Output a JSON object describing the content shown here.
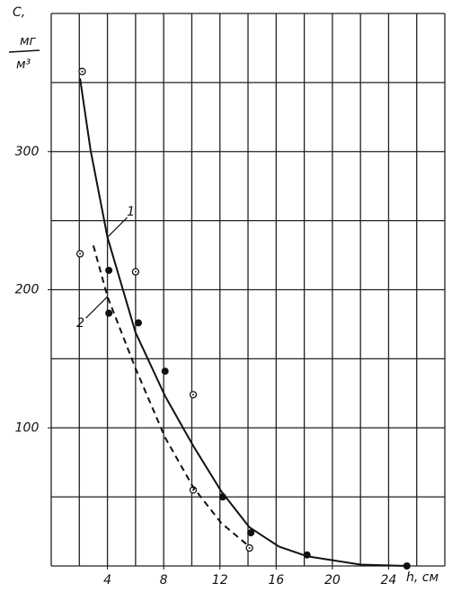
{
  "chart_data": {
    "type": "scatter",
    "y_label_top": "C,",
    "y_label_num": "мг",
    "y_label_den": "м³",
    "x_label": "h, см",
    "xlim": [
      0,
      28
    ],
    "ylim": [
      0,
      400
    ],
    "xticks": [
      4,
      8,
      12,
      16,
      20,
      24
    ],
    "yticks": [
      100,
      200,
      300
    ],
    "xgrid": [
      0,
      2,
      4,
      6,
      8,
      10,
      12,
      14,
      16,
      18,
      20,
      22,
      24,
      26,
      28
    ],
    "ygrid": [
      0,
      50,
      100,
      150,
      200,
      250,
      300,
      350,
      400
    ],
    "grid": true,
    "series": [
      {
        "marker": "open",
        "color": "#111",
        "x": [
          2.2,
          2.05,
          6.0,
          10.1,
          10.1,
          14.1
        ],
        "values": [
          358,
          226,
          213,
          124,
          55,
          13
        ]
      },
      {
        "marker": "filled",
        "color": "#111",
        "x": [
          4.1,
          4.1,
          6.2,
          8.1,
          12.2,
          14.2,
          18.2,
          25.3
        ],
        "values": [
          214,
          183,
          176,
          141,
          50,
          24,
          8,
          0
        ]
      },
      {
        "line": "solid",
        "label": "1",
        "color": "#111",
        "x": [
          2.05,
          2.8,
          4,
          6,
          8.1,
          10.1,
          12.1,
          14.1,
          16.2,
          18.2,
          22,
          25.3
        ],
        "values": [
          353,
          301,
          238,
          169,
          123,
          87,
          54,
          28,
          14,
          7,
          1,
          0
        ]
      },
      {
        "line": "dashed",
        "label": "2",
        "color": "#111",
        "x": [
          3,
          4,
          6,
          8.1,
          10.1,
          12.1,
          14.1
        ],
        "values": [
          232,
          195,
          143,
          93,
          57,
          31,
          14
        ]
      }
    ]
  }
}
